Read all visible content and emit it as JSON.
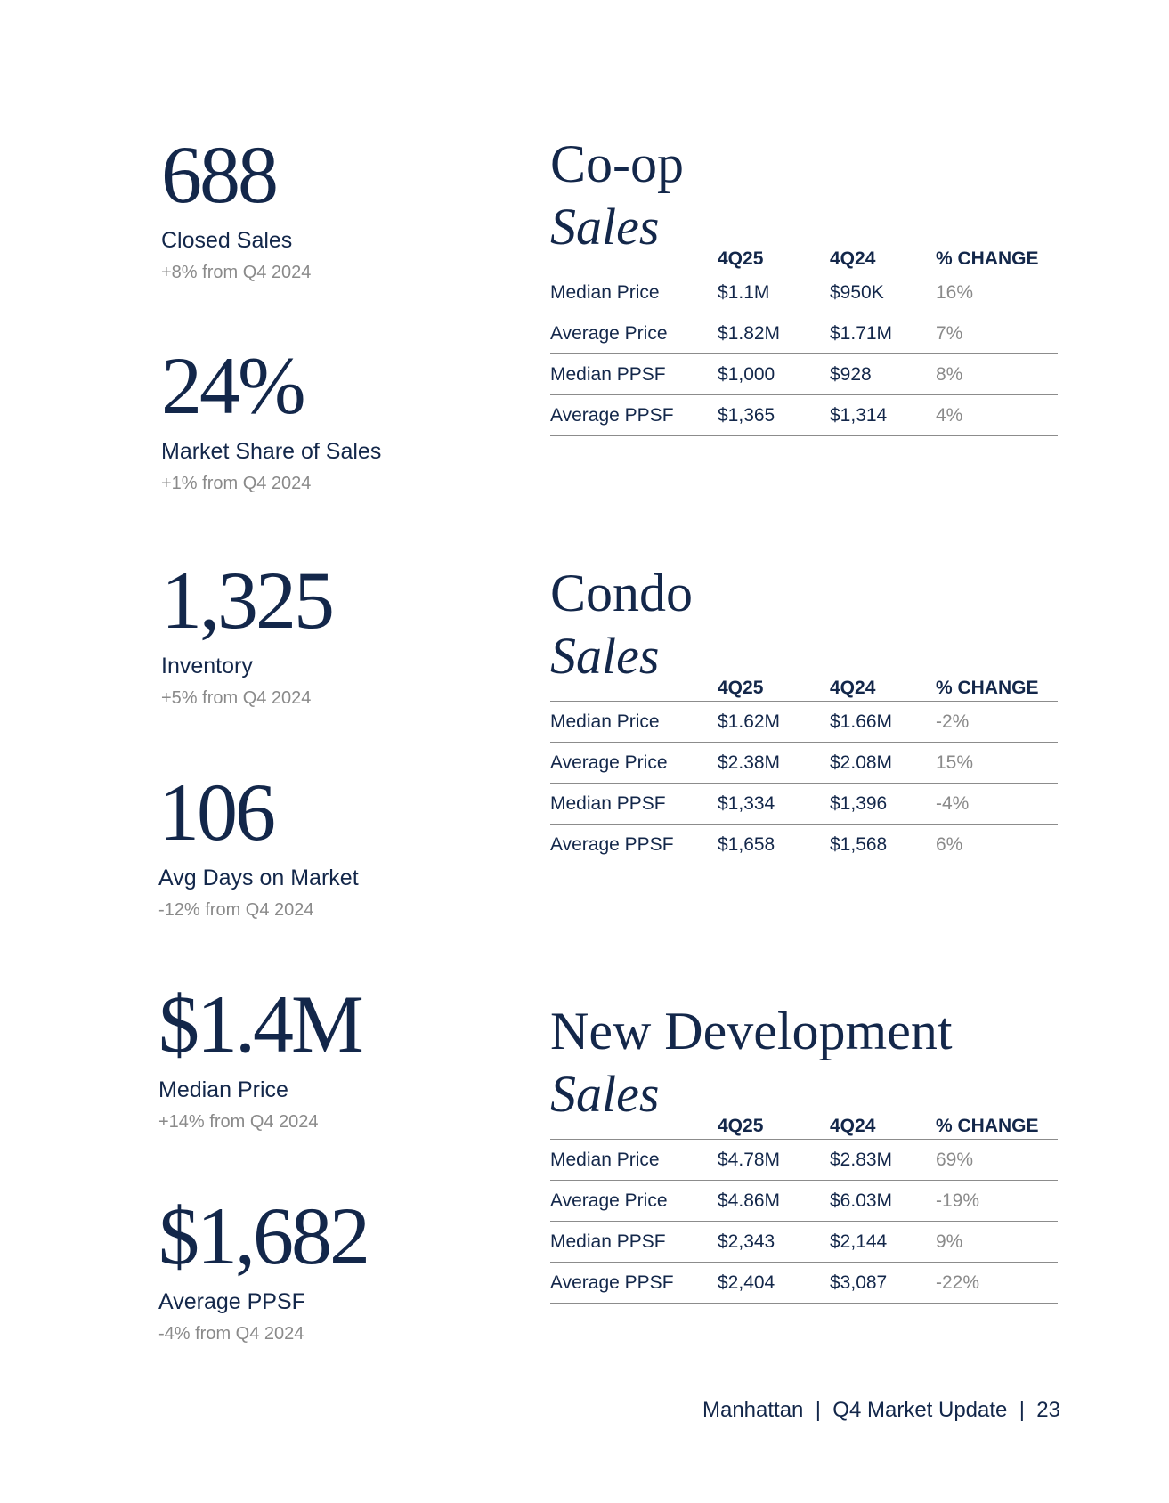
{
  "stats": [
    {
      "value": "688",
      "label": "Closed Sales",
      "sub": "+8% from Q4 2024"
    },
    {
      "value": "24%",
      "label": "Market Share of Sales",
      "sub": "+1% from Q4 2024"
    },
    {
      "value": "1,325",
      "label": "Inventory",
      "sub": "+5% from Q4 2024"
    },
    {
      "value": "106",
      "label": "Avg Days on Market",
      "sub": "-12% from Q4 2024"
    },
    {
      "value": "$1.4M",
      "label": "Median Price",
      "sub": "+14% from Q4 2024"
    },
    {
      "value": "$1,682",
      "label": "Average PPSF",
      "sub": "-4% from Q4 2024"
    }
  ],
  "sections": [
    {
      "title": "Co-op",
      "subtitle": "Sales",
      "headers": [
        "",
        "4Q25",
        "4Q24",
        "% CHANGE"
      ],
      "rows": [
        [
          "Median Price",
          "$1.1M",
          "$950K",
          "16%"
        ],
        [
          "Average Price",
          "$1.82M",
          "$1.71M",
          "7%"
        ],
        [
          "Median PPSF",
          "$1,000",
          "$928",
          "8%"
        ],
        [
          "Average PPSF",
          "$1,365",
          "$1,314",
          "4%"
        ]
      ]
    },
    {
      "title": "Condo",
      "subtitle": "Sales",
      "headers": [
        "",
        "4Q25",
        "4Q24",
        "% CHANGE"
      ],
      "rows": [
        [
          "Median Price",
          "$1.62M",
          "$1.66M",
          "-2%"
        ],
        [
          "Average Price",
          "$2.38M",
          "$2.08M",
          "15%"
        ],
        [
          "Median PPSF",
          "$1,334",
          "$1,396",
          "-4%"
        ],
        [
          "Average PPSF",
          "$1,658",
          "$1,568",
          "6%"
        ]
      ]
    },
    {
      "title": "New Development",
      "subtitle": "Sales",
      "headers": [
        "",
        "4Q25",
        "4Q24",
        "% CHANGE"
      ],
      "rows": [
        [
          "Median Price",
          "$4.78M",
          "$2.83M",
          "69%"
        ],
        [
          "Average Price",
          "$4.86M",
          "$6.03M",
          "-19%"
        ],
        [
          "Median PPSF",
          "$2,343",
          "$2,144",
          "9%"
        ],
        [
          "Average PPSF",
          "$2,404",
          "$3,087",
          "-22%"
        ]
      ]
    }
  ],
  "footer": {
    "text": "Manhattan  |  Q4 Market Update  |  23"
  }
}
